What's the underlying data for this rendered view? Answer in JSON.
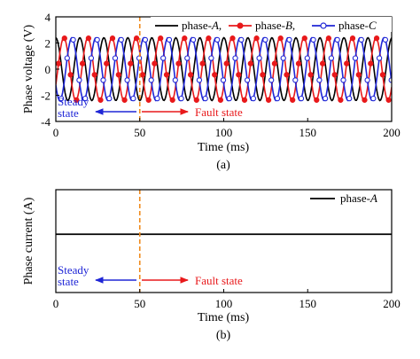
{
  "chart_data": [
    {
      "type": "line",
      "panel_label": "(a)",
      "xlabel": "Time (ms)",
      "ylabel": "Phase voltage (V)",
      "xlim": [
        0,
        200
      ],
      "ylim": [
        -4,
        4
      ],
      "xticks": [
        0,
        50,
        100,
        150,
        200
      ],
      "yticks": [
        -4,
        -2,
        0,
        2,
        4
      ],
      "grid": false,
      "legend_position": "top-right",
      "legend_entries": [
        {
          "prefix": "phase-",
          "suffix": "A",
          "trail": ","
        },
        {
          "prefix": "phase-",
          "suffix": "B",
          "trail": ","
        },
        {
          "prefix": "phase-",
          "suffix": "C",
          "trail": ""
        }
      ],
      "series": [
        {
          "name": "phase-A",
          "color": "#000000",
          "marker": "none",
          "amplitude": 2.4,
          "period_ms": 14.3,
          "phase_deg": 90
        },
        {
          "name": "phase-B",
          "color": "#e8191b",
          "marker": "filled-circle",
          "amplitude": 2.4,
          "period_ms": 14.3,
          "phase_deg": -30
        },
        {
          "name": "phase-C",
          "color": "#1f26d6",
          "marker": "open-circle",
          "amplitude": 2.4,
          "period_ms": 14.3,
          "phase_deg": 210
        }
      ],
      "annotations": {
        "fault_time_ms": 50,
        "fault_line_color": "#f08a1c",
        "steady_label": [
          "Steady",
          "state"
        ],
        "steady_color": "#1f26d6",
        "fault_label": "Fault state",
        "fault_color": "#e8191b"
      }
    },
    {
      "type": "line",
      "panel_label": "(b)",
      "xlabel": "Time (ms)",
      "ylabel": "Phase current (A)",
      "xlim": [
        0,
        200
      ],
      "xticks": [
        0,
        50,
        100,
        150,
        200
      ],
      "grid": false,
      "legend_position": "top-right",
      "legend_entries": [
        {
          "prefix": "phase-",
          "suffix": "A",
          "trail": ""
        }
      ],
      "series": [
        {
          "name": "phase-A",
          "color": "#000000",
          "value": 1.7
        }
      ],
      "annotations": {
        "fault_time_ms": 50,
        "fault_line_color": "#f08a1c",
        "steady_label": [
          "Steady",
          "state"
        ],
        "steady_color": "#1f26d6",
        "fault_label": "Fault state",
        "fault_color": "#e8191b"
      }
    }
  ]
}
